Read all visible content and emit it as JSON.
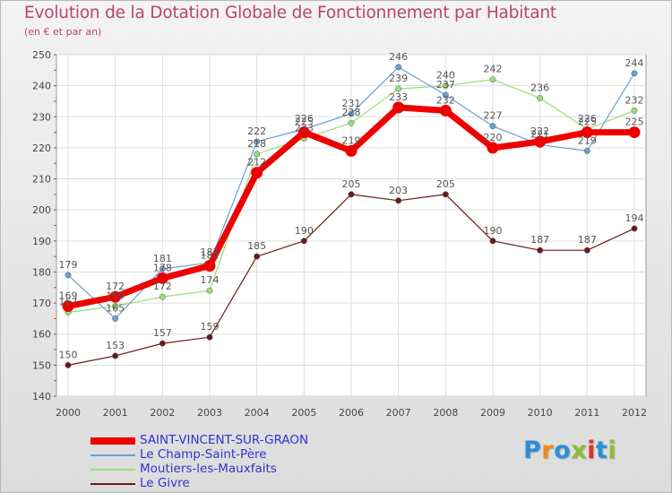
{
  "chart_data": {
    "type": "line",
    "title": "Evolution de la Dotation Globale de Fonctionnement par Habitant",
    "subtitle": "(en € et par an)",
    "xlabel": "",
    "ylabel": "",
    "ylim": [
      140,
      250
    ],
    "yticks": [
      "140",
      "150",
      "160",
      "170",
      "180",
      "190",
      "200",
      "210",
      "220",
      "230",
      "240",
      "250"
    ],
    "categories": [
      "2000",
      "2001",
      "2002",
      "2003",
      "2004",
      "2005",
      "2006",
      "2007",
      "2008",
      "2009",
      "2010",
      "2011",
      "2012"
    ],
    "grid": true,
    "legend_position": "bottom-left",
    "series": [
      {
        "name": "Le Givre",
        "color": "#6b1a1a",
        "values": [
          150,
          153,
          157,
          159,
          185,
          190,
          205,
          203,
          205,
          190,
          187,
          187,
          194
        ]
      },
      {
        "name": "Moutiers-les-Mauxfaits",
        "color": "#99dd77",
        "values": [
          167,
          169,
          172,
          174,
          218,
          223,
          228,
          239,
          240,
          242,
          236,
          226,
          232
        ]
      },
      {
        "name": "Le Champ-Saint-Père",
        "color": "#6a9fd0",
        "values": [
          179,
          165,
          181,
          183,
          222,
          226,
          231,
          246,
          237,
          227,
          221,
          219,
          244
        ]
      },
      {
        "name": "SAINT-VINCENT-SUR-GRAON",
        "color": "#ee0000",
        "values": [
          169,
          172,
          178,
          182,
          212,
          225,
          219,
          233,
          232,
          220,
          222,
          225,
          225
        ]
      }
    ]
  },
  "legend": [
    {
      "name": "SAINT-VINCENT-SUR-GRAON",
      "color": "#ee0000",
      "text_color": "#3232cc"
    },
    {
      "name": "Le Champ-Saint-Père",
      "color": "#6a9fd0",
      "text_color": "#3232cc"
    },
    {
      "name": "Moutiers-les-Mauxfaits",
      "color": "#99dd77",
      "text_color": "#3232cc"
    },
    {
      "name": "Le Givre",
      "color": "#6b1a1a",
      "text_color": "#3232cc"
    }
  ],
  "logo": {
    "text": "Proxiti",
    "colors": [
      "#2c8ed8",
      "#f08a18",
      "#2c8ed8",
      "#88c030",
      "#e03030",
      "#2c8ed8",
      "#88c030"
    ]
  }
}
